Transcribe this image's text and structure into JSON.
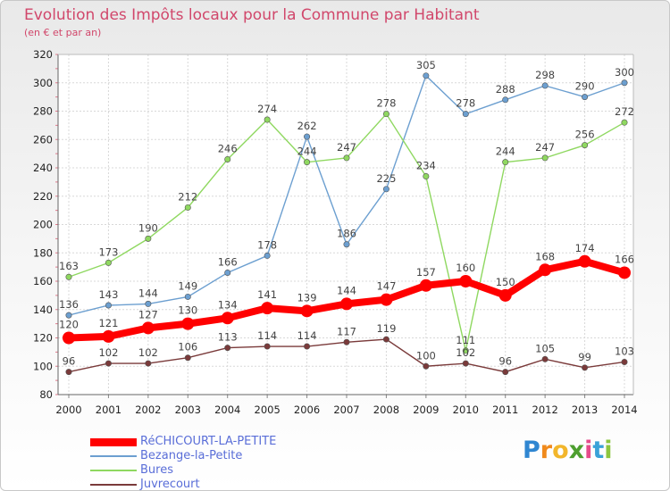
{
  "header": {
    "title": "Evolution des Impôts locaux pour la Commune par Habitant",
    "subtitle": "(en € et par an)"
  },
  "chart_data": {
    "type": "line",
    "title": "Evolution des Impôts locaux pour la Commune par Habitant",
    "subtitle": "(en € et par an)",
    "xlabel": "",
    "ylabel": "",
    "x": [
      2000,
      2001,
      2002,
      2003,
      2004,
      2005,
      2006,
      2007,
      2008,
      2009,
      2010,
      2011,
      2012,
      2013,
      2014
    ],
    "ylim": [
      80,
      320
    ],
    "yticks": [
      80,
      100,
      120,
      140,
      160,
      180,
      200,
      220,
      240,
      260,
      280,
      300,
      320
    ],
    "grid": true,
    "legend_position": "bottom-left",
    "series": [
      {
        "name": "RéCHICOURT-LA-PETITE",
        "color": "#ff0000",
        "emphasis": true,
        "values": [
          120,
          121,
          127,
          130,
          134,
          141,
          139,
          144,
          147,
          157,
          160,
          150,
          168,
          174,
          166
        ]
      },
      {
        "name": "Bezange-la-Petite",
        "color": "#6c9fd0",
        "values": [
          136,
          143,
          144,
          149,
          166,
          178,
          262,
          186,
          225,
          305,
          278,
          288,
          298,
          290,
          300
        ]
      },
      {
        "name": "Bures",
        "color": "#8fd860",
        "values": [
          163,
          173,
          190,
          212,
          246,
          274,
          244,
          247,
          278,
          234,
          111,
          244,
          247,
          256,
          272
        ]
      },
      {
        "name": "Juvrecourt",
        "color": "#7a3a3a",
        "values": [
          96,
          102,
          102,
          106,
          113,
          114,
          114,
          117,
          119,
          100,
          102,
          96,
          105,
          99,
          103
        ]
      }
    ]
  },
  "legend": {
    "items": [
      {
        "label": "RéCHICOURT-LA-PETITE",
        "color": "#ff0000"
      },
      {
        "label": "Bezange-la-Petite",
        "color": "#6c9fd0"
      },
      {
        "label": "Bures",
        "color": "#8fd860"
      },
      {
        "label": "Juvrecourt",
        "color": "#7a3a3a"
      }
    ]
  },
  "logo": {
    "text": "Proxiti",
    "parts": [
      "P",
      "r",
      "o",
      "x",
      "i",
      "t",
      "i"
    ]
  }
}
